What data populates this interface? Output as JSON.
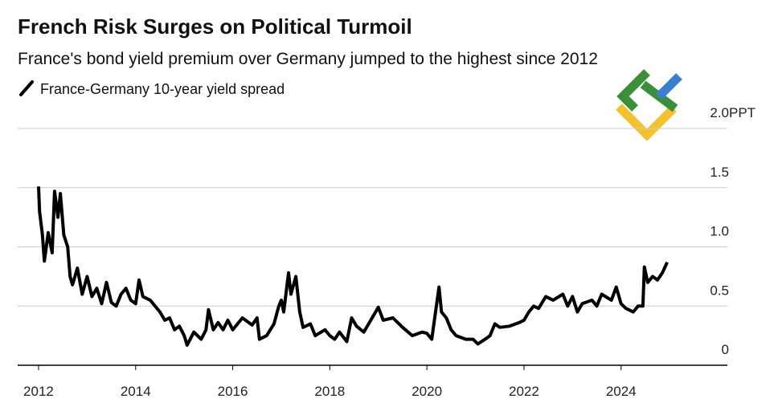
{
  "chart_data": {
    "type": "line",
    "title": "French Risk Surges on Political Turmoil",
    "subtitle": "France's bond yield premium over Germany jumped to the highest since 2012",
    "y_unit": "PPT",
    "series": [
      {
        "name": "France-Germany 10-year yield spread",
        "color": "#000000",
        "x": [
          2012.0,
          2012.02,
          2012.08,
          2012.12,
          2012.2,
          2012.28,
          2012.33,
          2012.4,
          2012.45,
          2012.52,
          2012.6,
          2012.65,
          2012.7,
          2012.8,
          2012.9,
          2013.0,
          2013.1,
          2013.2,
          2013.3,
          2013.4,
          2013.5,
          2013.6,
          2013.7,
          2013.8,
          2013.9,
          2014.0,
          2014.07,
          2014.15,
          2014.3,
          2014.4,
          2014.5,
          2014.6,
          2014.7,
          2014.8,
          2014.9,
          2015.0,
          2015.06,
          2015.2,
          2015.35,
          2015.45,
          2015.5,
          2015.6,
          2015.7,
          2015.8,
          2015.9,
          2016.0,
          2016.2,
          2016.4,
          2016.5,
          2016.55,
          2016.7,
          2016.85,
          2016.95,
          2017.0,
          2017.05,
          2017.15,
          2017.2,
          2017.3,
          2017.38,
          2017.45,
          2017.6,
          2017.7,
          2017.9,
          2018.0,
          2018.1,
          2018.2,
          2018.35,
          2018.45,
          2018.55,
          2018.7,
          2018.8,
          2019.0,
          2019.1,
          2019.3,
          2019.5,
          2019.7,
          2019.9,
          2020.0,
          2020.1,
          2020.25,
          2020.3,
          2020.4,
          2020.5,
          2020.6,
          2020.8,
          2020.95,
          2021.05,
          2021.2,
          2021.3,
          2021.4,
          2021.5,
          2021.7,
          2021.9,
          2022.0,
          2022.1,
          2022.2,
          2022.3,
          2022.45,
          2022.6,
          2022.8,
          2022.9,
          2023.0,
          2023.1,
          2023.2,
          2023.4,
          2023.5,
          2023.6,
          2023.8,
          2023.9,
          2024.0,
          2024.1,
          2024.25,
          2024.35,
          2024.45,
          2024.48,
          2024.55,
          2024.65,
          2024.75,
          2024.85,
          2024.95
        ],
        "values": [
          1.51,
          1.3,
          1.1,
          0.88,
          1.12,
          0.95,
          1.47,
          1.25,
          1.45,
          1.1,
          1.0,
          0.75,
          0.68,
          0.82,
          0.6,
          0.75,
          0.58,
          0.65,
          0.52,
          0.7,
          0.53,
          0.5,
          0.6,
          0.65,
          0.55,
          0.52,
          0.72,
          0.58,
          0.55,
          0.5,
          0.45,
          0.38,
          0.4,
          0.3,
          0.33,
          0.25,
          0.17,
          0.28,
          0.22,
          0.3,
          0.47,
          0.3,
          0.36,
          0.3,
          0.38,
          0.3,
          0.4,
          0.34,
          0.4,
          0.22,
          0.25,
          0.35,
          0.5,
          0.55,
          0.45,
          0.78,
          0.6,
          0.75,
          0.45,
          0.32,
          0.35,
          0.25,
          0.3,
          0.25,
          0.22,
          0.28,
          0.2,
          0.4,
          0.33,
          0.28,
          0.35,
          0.49,
          0.38,
          0.4,
          0.32,
          0.25,
          0.28,
          0.27,
          0.22,
          0.66,
          0.45,
          0.4,
          0.3,
          0.25,
          0.22,
          0.22,
          0.18,
          0.22,
          0.25,
          0.35,
          0.32,
          0.33,
          0.36,
          0.38,
          0.45,
          0.5,
          0.48,
          0.58,
          0.55,
          0.6,
          0.5,
          0.58,
          0.45,
          0.52,
          0.55,
          0.5,
          0.6,
          0.55,
          0.66,
          0.52,
          0.48,
          0.45,
          0.5,
          0.5,
          0.83,
          0.7,
          0.75,
          0.72,
          0.78,
          0.87
        ]
      }
    ],
    "xlim": [
      2011.57,
      2026.19
    ],
    "xticks": [
      2012,
      2014,
      2016,
      2018,
      2020,
      2022,
      2024
    ],
    "ylim": [
      0,
      2
    ],
    "yticks": [
      0,
      0.5,
      {
        "value": 1,
        "label": "1.0"
      },
      1.5,
      {
        "value": 2,
        "label": "2.0"
      }
    ],
    "grid": true
  }
}
